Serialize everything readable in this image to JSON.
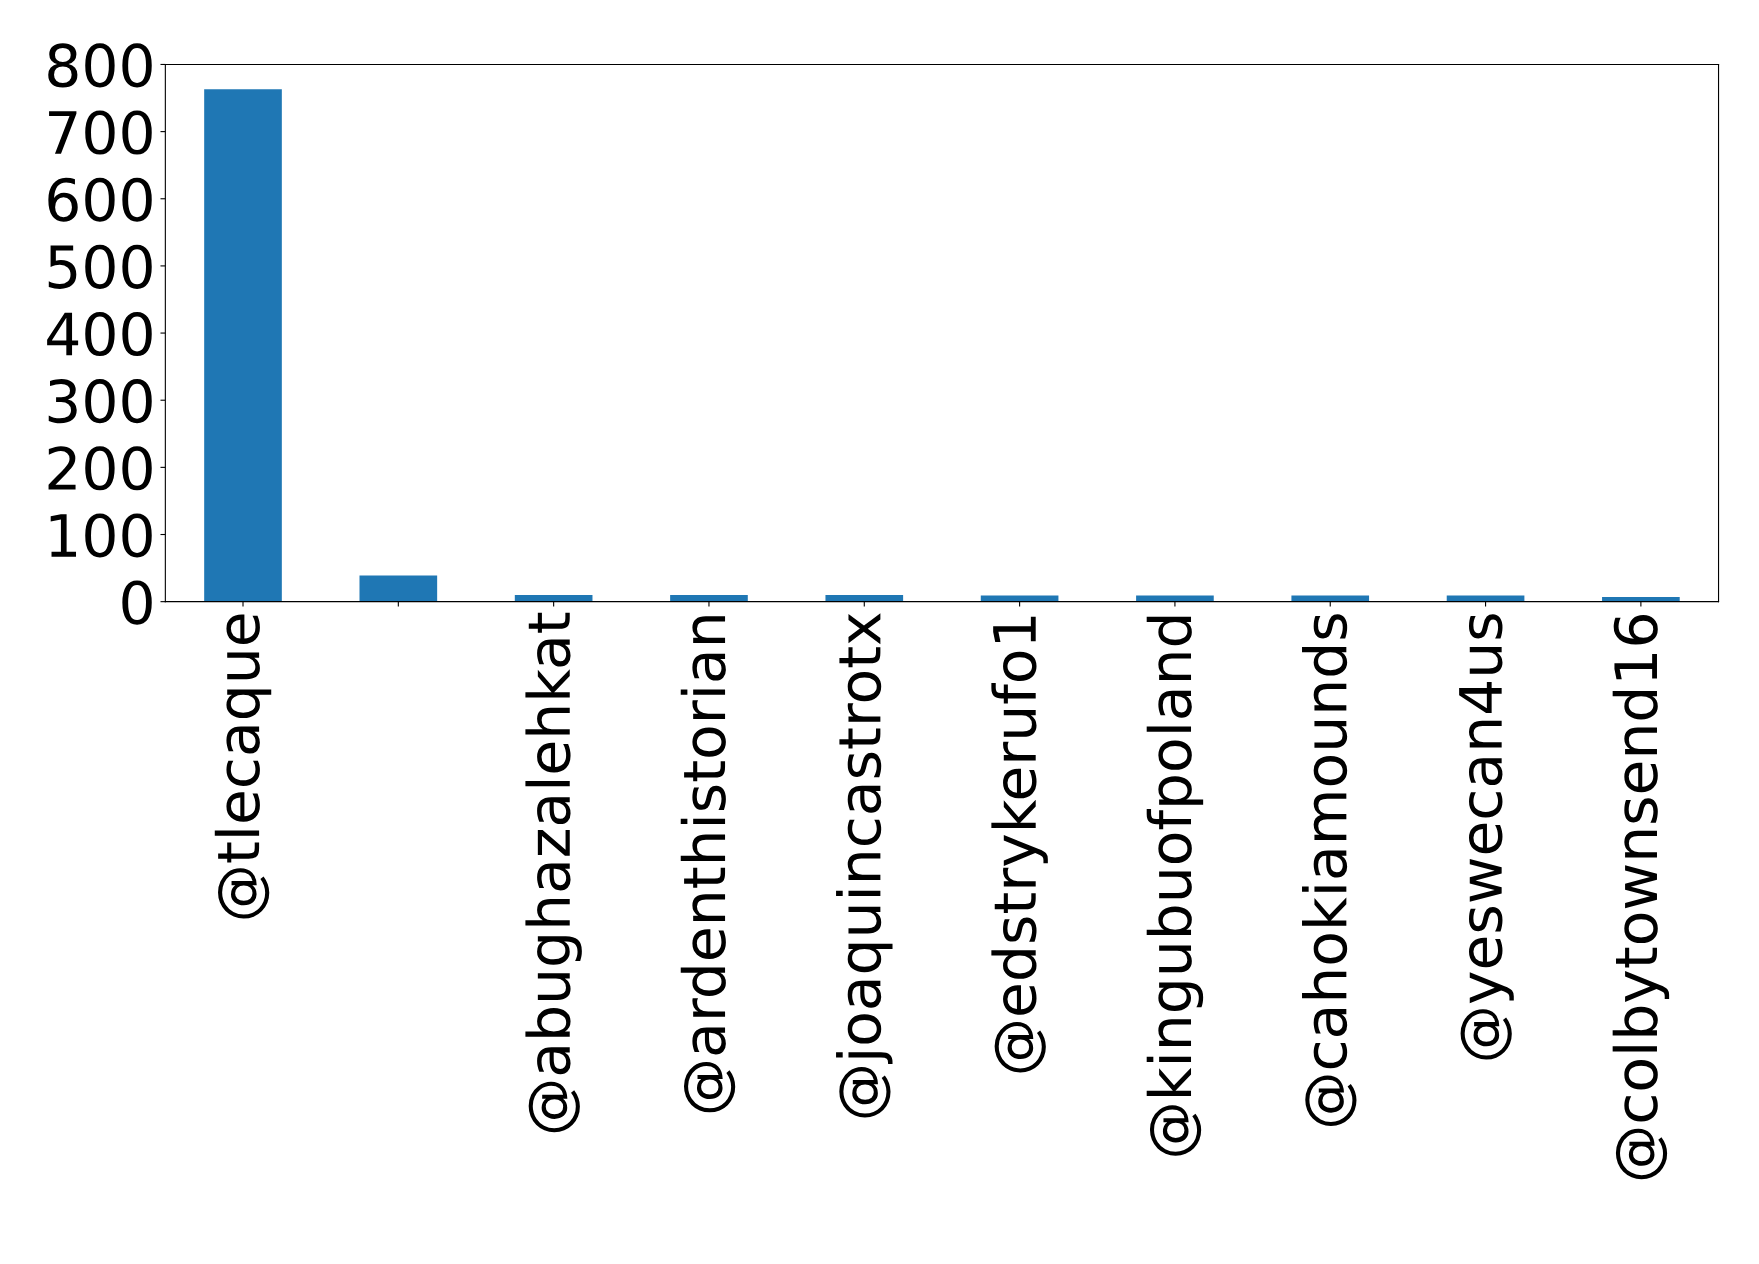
{
  "chart_data": {
    "type": "bar",
    "categories": [
      "@tlecaque",
      null,
      "@abughazalehkat",
      "@ardenthistorian",
      "@joaquincastrotx",
      "@edstrykerufo1",
      "@kingubuofpoland",
      "@cahokiamounds",
      "@yeswecan4us",
      "@colbytownsend16"
    ],
    "values": [
      763,
      39,
      10,
      10,
      10,
      9,
      9,
      9,
      9,
      7
    ],
    "color": "#1f77b4",
    "ylim": [
      0,
      800
    ],
    "yticks": [
      0,
      100,
      200,
      300,
      400,
      500,
      600,
      700,
      800
    ],
    "grid": false,
    "legend": false
  }
}
